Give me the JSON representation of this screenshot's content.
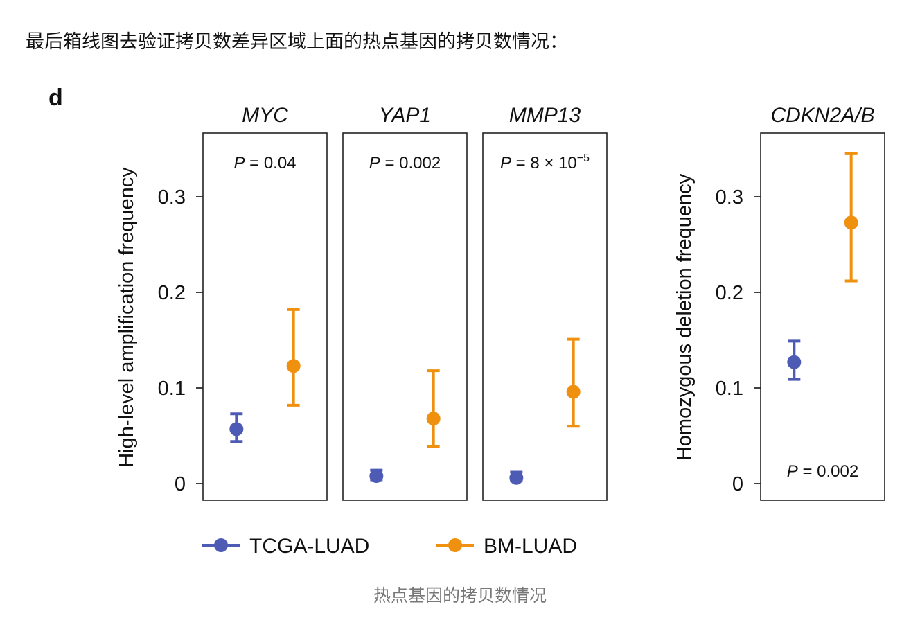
{
  "intro_text": "最后箱线图去验证拷贝数差异区域上面的热点基因的拷贝数情况：",
  "caption": "热点基因的拷贝数情况",
  "chart_data": [
    {
      "type": "scatter",
      "panel_label": "d",
      "ylabel": "High-level amplification frequency",
      "ylim": [
        0,
        0.35
      ],
      "yticks": [
        0,
        0.1,
        0.2,
        0.3
      ],
      "ytick_labels": [
        "0",
        "0.1",
        "0.2",
        "0.3"
      ],
      "facets": [
        {
          "title": "MYC",
          "p_value": {
            "prefix": "P",
            "text": " = 0.04"
          },
          "points": [
            {
              "series": "TCGA-LUAD",
              "value": 0.057,
              "lower": 0.044,
              "upper": 0.073
            },
            {
              "series": "BM-LUAD",
              "value": 0.123,
              "lower": 0.082,
              "upper": 0.182
            }
          ]
        },
        {
          "title": "YAP1",
          "p_value": {
            "prefix": "P",
            "text": " = 0.002"
          },
          "points": [
            {
              "series": "TCGA-LUAD",
              "value": 0.008,
              "lower": 0.004,
              "upper": 0.014
            },
            {
              "series": "BM-LUAD",
              "value": 0.068,
              "lower": 0.039,
              "upper": 0.118
            }
          ]
        },
        {
          "title": "MMP13",
          "p_value": {
            "prefix": "P",
            "text": " = 8 × 10",
            "superscript": "−5"
          },
          "points": [
            {
              "series": "TCGA-LUAD",
              "value": 0.006,
              "lower": 0.003,
              "upper": 0.012
            },
            {
              "series": "BM-LUAD",
              "value": 0.096,
              "lower": 0.06,
              "upper": 0.151
            }
          ]
        }
      ]
    },
    {
      "type": "scatter",
      "ylabel": "Homozygous deletion frequency",
      "ylim": [
        0,
        0.35
      ],
      "yticks": [
        0,
        0.1,
        0.2,
        0.3
      ],
      "ytick_labels": [
        "0",
        "0.1",
        "0.2",
        "0.3"
      ],
      "facets": [
        {
          "title": "CDKN2A/B",
          "p_value": {
            "prefix": "P",
            "text": " = 0.002"
          },
          "points": [
            {
              "series": "TCGA-LUAD",
              "value": 0.127,
              "lower": 0.109,
              "upper": 0.149
            },
            {
              "series": "BM-LUAD",
              "value": 0.273,
              "lower": 0.212,
              "upper": 0.345
            }
          ]
        }
      ]
    }
  ],
  "legend": [
    {
      "name": "TCGA-LUAD",
      "color": "#4d5bb5"
    },
    {
      "name": "BM-LUAD",
      "color": "#f0900f"
    }
  ]
}
